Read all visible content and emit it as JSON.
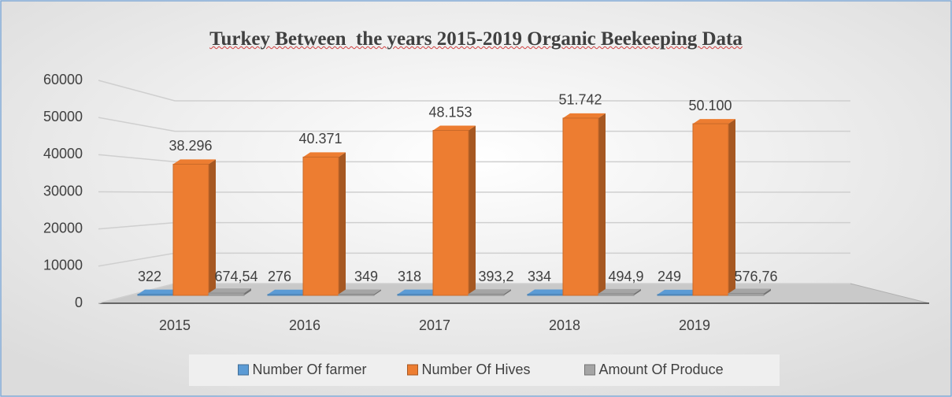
{
  "chart_data": {
    "type": "bar3d",
    "title": "Turkey Between  the years 2015-2019 Organic Beekeeping Data",
    "categories": [
      "2015",
      "2016",
      "2017",
      "2018",
      "2019"
    ],
    "series": [
      {
        "name": "Number Of farmer",
        "color": "#5b9bd5",
        "values": [
          322,
          276,
          318,
          334,
          249
        ],
        "value_labels": [
          "322",
          "276",
          "318",
          "334",
          "249"
        ]
      },
      {
        "name": "Number Of Hives",
        "color": "#ed7d31",
        "values": [
          38296,
          40371,
          48153,
          51742,
          50100
        ],
        "value_labels": [
          "38.296",
          "40.371",
          "48.153",
          "51.742",
          "50.100"
        ]
      },
      {
        "name": "Amount Of Produce",
        "color": "#a5a5a5",
        "values": [
          674.54,
          349,
          393.2,
          494.9,
          576.76
        ],
        "value_labels": [
          "674,54",
          "349",
          "393,2",
          "494,9",
          "576,76"
        ]
      }
    ],
    "ylim": [
      0,
      60000
    ],
    "yticks": [
      0,
      10000,
      20000,
      30000,
      40000,
      50000,
      60000
    ],
    "grid": true,
    "legend": "bottom"
  }
}
